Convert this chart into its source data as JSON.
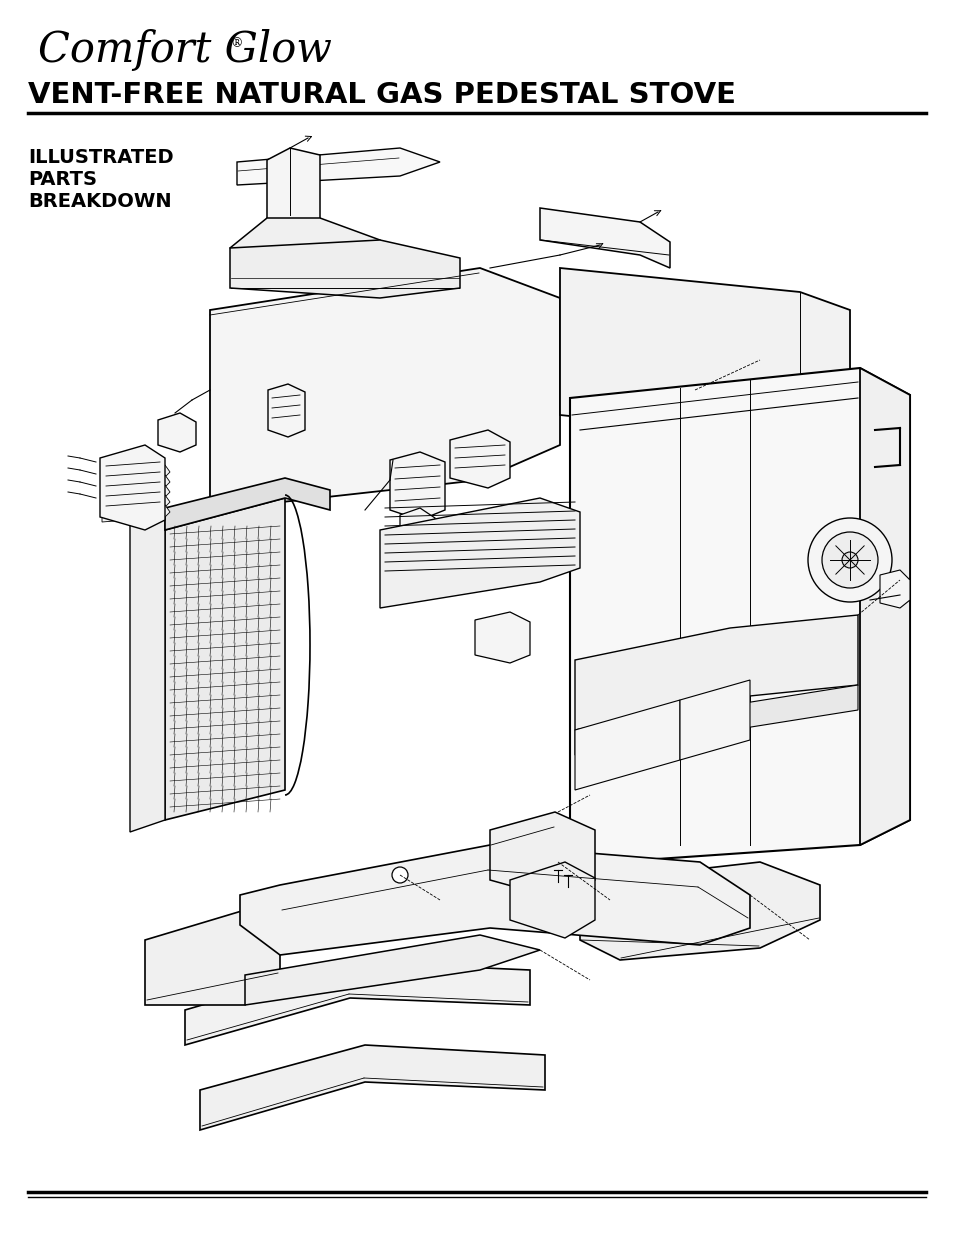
{
  "brand_logo": "Comfort Glow",
  "logo_registered": "®",
  "title": "VENT-FREE NATURAL GAS PEDESTAL STOVE",
  "subtitle_line1": "ILLUSTRATED",
  "subtitle_line2": "PARTS",
  "subtitle_line3": "BREAKDOWN",
  "bg_color": "#ffffff",
  "text_color": "#000000",
  "title_fontsize": 21,
  "subtitle_fontsize": 14,
  "logo_fontsize": 30,
  "line_color": "#000000",
  "page_width": 9.54,
  "page_height": 12.35,
  "dpi": 100
}
